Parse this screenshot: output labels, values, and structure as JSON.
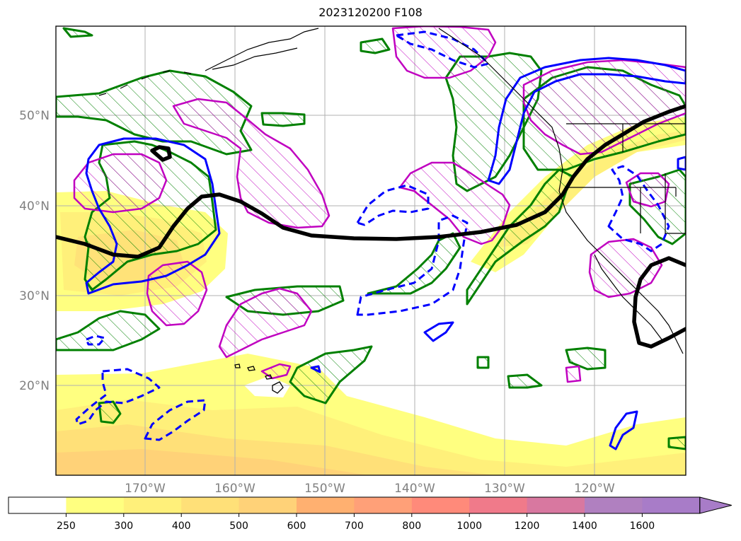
{
  "title": "2023120200 F108",
  "map": {
    "projection": "plate-carree",
    "lon_range": [
      -180,
      -110
    ],
    "lat_range": [
      10,
      60
    ],
    "grid": true,
    "lat_labels": [
      "20°N",
      "30°N",
      "40°N",
      "50°N"
    ],
    "lon_labels": [
      "170°W",
      "160°W",
      "150°W",
      "140°W",
      "130°W",
      "120°W"
    ],
    "colors": {
      "jet_axis": "#000000",
      "green_contour": "#008000",
      "magenta_contour": "#c000c0",
      "blue_contour": "#0000ff",
      "coastline": "#000000",
      "gridline": "#b0b0b0"
    }
  },
  "colorbar": {
    "extend": "max",
    "ticks": [
      "250",
      "300",
      "400",
      "500",
      "600",
      "700",
      "800",
      "1000",
      "1200",
      "1400",
      "1600"
    ],
    "colors": [
      "#ffffff",
      "#ffff80",
      "#fff07a",
      "#ffe078",
      "#ffd278",
      "#ffb070",
      "#ffa078",
      "#ff8a7a",
      "#f07a8a",
      "#d878a0",
      "#b080c0",
      "#a87cc8"
    ]
  }
}
